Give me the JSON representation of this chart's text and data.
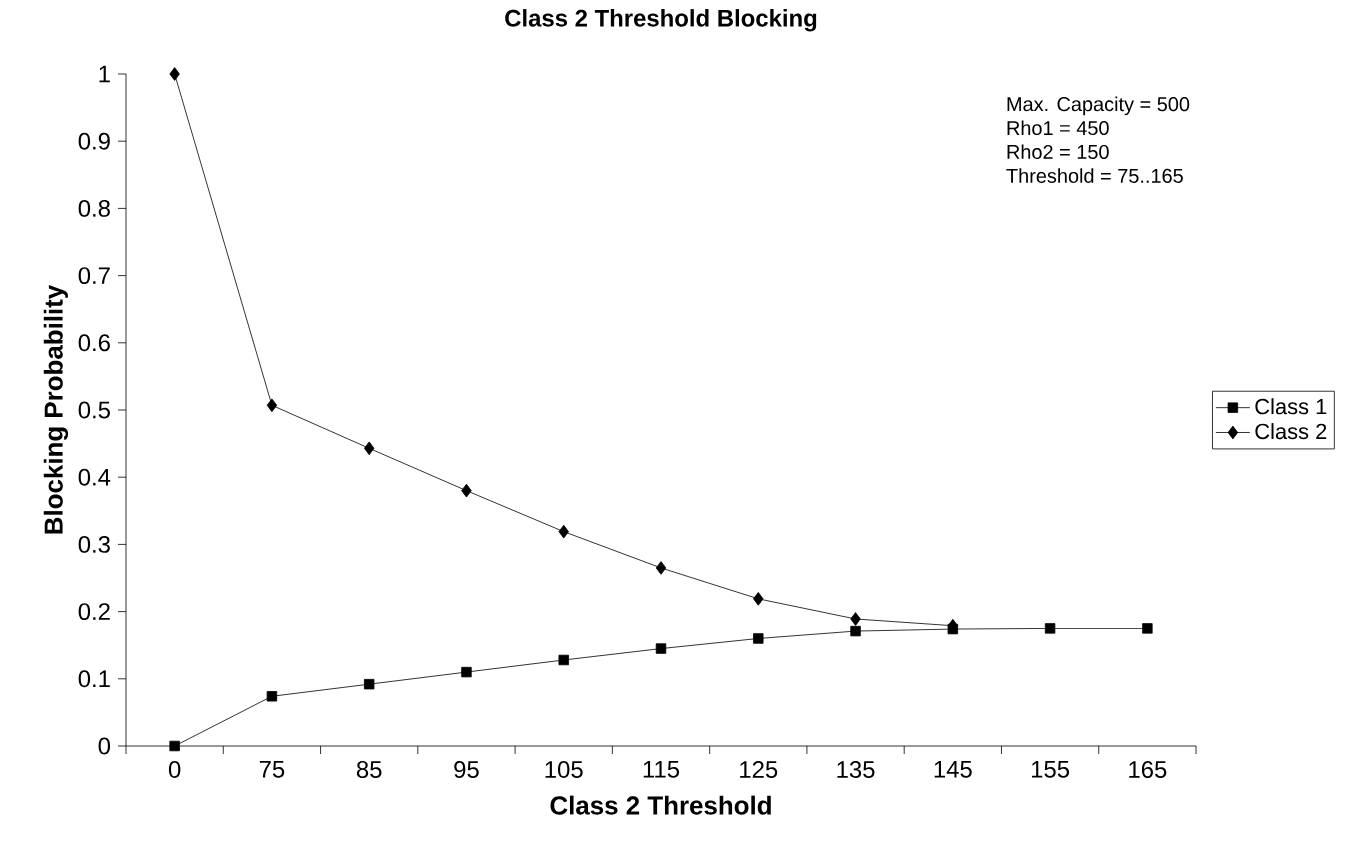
{
  "chart_data": {
    "type": "line",
    "title": "Class 2 Threshold Blocking",
    "xlabel": "Class 2 Threshold",
    "ylabel": "Blocking Probability",
    "annotations": [
      "Max. Capacity = 500",
      "Rho1 = 450",
      "Rho2 = 150",
      "Threshold = 75..165"
    ],
    "categories": [
      "0",
      "75",
      "85",
      "95",
      "105",
      "115",
      "125",
      "135",
      "145",
      "155",
      "165"
    ],
    "series": [
      {
        "name": "Class 1",
        "color": "#000000",
        "marker": "square",
        "values": [
          0,
          0.074,
          0.092,
          0.11,
          0.128,
          0.145,
          0.16,
          0.171,
          0.174,
          0.175,
          0.175
        ]
      },
      {
        "name": "Class 2",
        "color": "#000000",
        "marker": "diamond",
        "values": [
          1,
          0.507,
          0.443,
          0.38,
          0.319,
          0.265,
          0.219,
          0.189,
          0.179,
          null,
          null
        ]
      }
    ],
    "ylim": [
      0,
      1
    ],
    "yticks": [
      0,
      0.1,
      0.2,
      0.3,
      0.4,
      0.5,
      0.6,
      0.7,
      0.8,
      0.9,
      1
    ],
    "grid": false,
    "legend": "right",
    "line_style": "solid"
  }
}
